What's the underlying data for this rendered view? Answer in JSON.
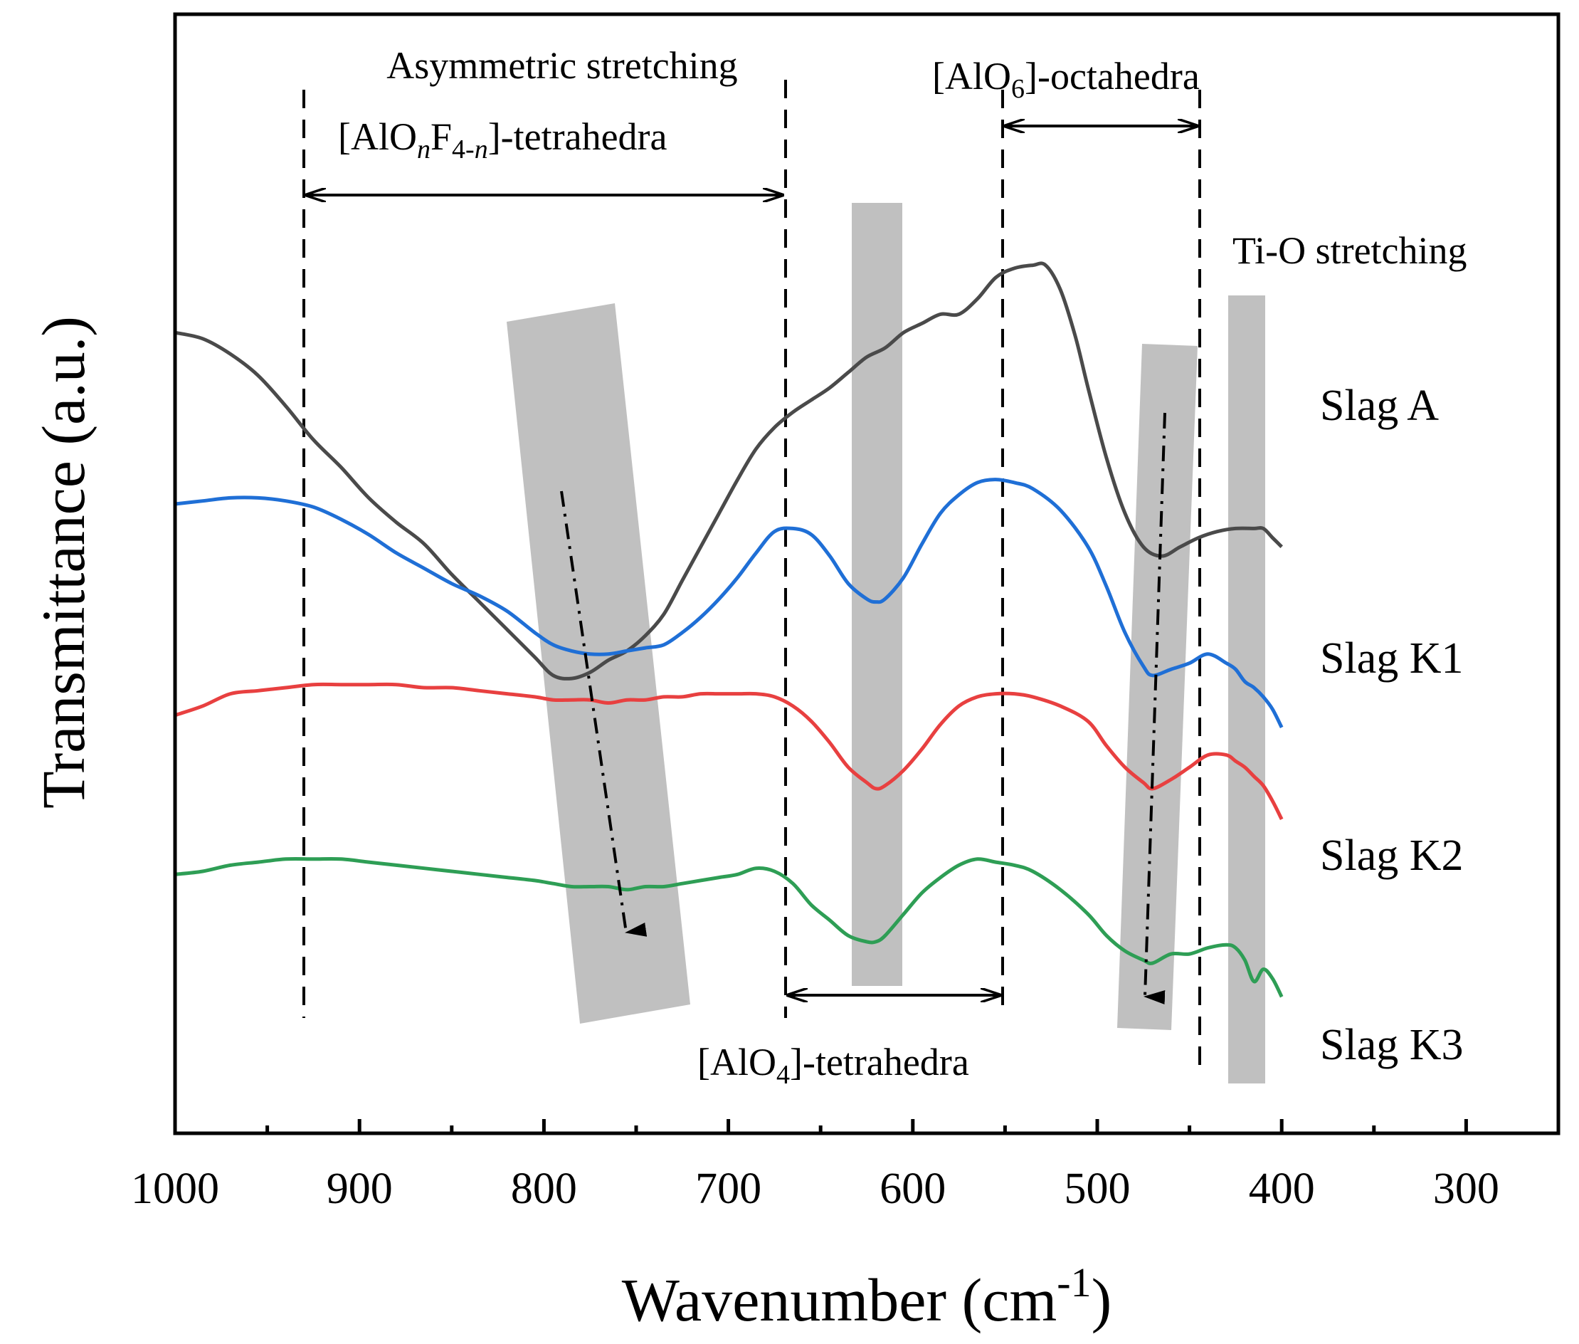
{
  "chart_data": {
    "type": "line",
    "title": "",
    "xlabel": "Wavenumber (cm",
    "xlabel_sup": "-1",
    "xlabel_close": ")",
    "ylabel": "Transmittance (a.u.)",
    "xlim": [
      1000,
      250
    ],
    "x_reversed": true,
    "y_ticks": "none",
    "xticks": [
      1000,
      900,
      800,
      700,
      600,
      500,
      400,
      300
    ],
    "xtick_labels": [
      "1000",
      "900",
      "800",
      "700",
      "600",
      "500",
      "400",
      "300"
    ],
    "minor_xticks": [
      950,
      850,
      750,
      650,
      550,
      450,
      350
    ],
    "series": [
      {
        "name": "Slag A",
        "color": "#4a4a4a",
        "x": [
          1000,
          985,
          970,
          955,
          940,
          925,
          910,
          895,
          880,
          865,
          850,
          835,
          820,
          805,
          795,
          785,
          775,
          765,
          755,
          745,
          735,
          725,
          715,
          705,
          695,
          685,
          675,
          665,
          655,
          645,
          635,
          625,
          615,
          605,
          595,
          585,
          575,
          565,
          555,
          545,
          535,
          528,
          520,
          512,
          505,
          495,
          485,
          475,
          465,
          455,
          445,
          435,
          425,
          415,
          410,
          405,
          400
        ],
        "y": [
          0.44,
          0.46,
          0.51,
          0.58,
          0.68,
          0.79,
          0.88,
          0.98,
          1.06,
          1.13,
          1.23,
          1.32,
          1.41,
          1.5,
          1.56,
          1.57,
          1.55,
          1.51,
          1.48,
          1.43,
          1.36,
          1.25,
          1.14,
          1.03,
          0.92,
          0.82,
          0.75,
          0.7,
          0.66,
          0.62,
          0.57,
          0.52,
          0.49,
          0.44,
          0.41,
          0.38,
          0.38,
          0.33,
          0.26,
          0.23,
          0.22,
          0.22,
          0.3,
          0.45,
          0.62,
          0.85,
          1.03,
          1.14,
          1.17,
          1.14,
          1.11,
          1.09,
          1.08,
          1.08,
          1.08,
          1.11,
          1.14
        ]
      },
      {
        "name": "Slag K1",
        "color": "#1f6fd6",
        "x": [
          1000,
          985,
          970,
          955,
          940,
          925,
          910,
          895,
          880,
          865,
          850,
          835,
          820,
          805,
          795,
          785,
          775,
          765,
          755,
          745,
          735,
          725,
          715,
          705,
          695,
          685,
          675,
          665,
          655,
          645,
          635,
          625,
          620,
          615,
          605,
          595,
          585,
          575,
          565,
          555,
          545,
          535,
          520,
          505,
          495,
          485,
          475,
          470,
          460,
          450,
          440,
          430,
          425,
          420,
          415,
          410,
          405,
          400
        ],
        "y": [
          1.0,
          0.99,
          0.98,
          0.98,
          0.99,
          1.01,
          1.05,
          1.1,
          1.16,
          1.21,
          1.26,
          1.3,
          1.35,
          1.42,
          1.46,
          1.48,
          1.49,
          1.49,
          1.48,
          1.47,
          1.46,
          1.42,
          1.37,
          1.31,
          1.24,
          1.16,
          1.09,
          1.08,
          1.1,
          1.17,
          1.26,
          1.31,
          1.32,
          1.31,
          1.24,
          1.13,
          1.03,
          0.97,
          0.93,
          0.92,
          0.93,
          0.95,
          1.02,
          1.14,
          1.27,
          1.42,
          1.53,
          1.56,
          1.54,
          1.52,
          1.49,
          1.52,
          1.54,
          1.58,
          1.6,
          1.63,
          1.67,
          1.73
        ]
      },
      {
        "name": "Slag K2",
        "color": "#e84040",
        "x": [
          1000,
          985,
          970,
          955,
          940,
          925,
          910,
          895,
          880,
          865,
          850,
          835,
          820,
          805,
          795,
          785,
          775,
          765,
          755,
          745,
          735,
          725,
          715,
          705,
          695,
          685,
          675,
          665,
          655,
          645,
          635,
          625,
          620,
          615,
          605,
          595,
          585,
          575,
          565,
          555,
          545,
          535,
          520,
          505,
          495,
          485,
          475,
          470,
          460,
          450,
          440,
          430,
          425,
          420,
          415,
          410,
          405,
          400
        ],
        "y": [
          1.69,
          1.66,
          1.62,
          1.61,
          1.6,
          1.59,
          1.59,
          1.59,
          1.59,
          1.6,
          1.6,
          1.61,
          1.62,
          1.63,
          1.64,
          1.64,
          1.64,
          1.65,
          1.64,
          1.64,
          1.63,
          1.63,
          1.62,
          1.62,
          1.62,
          1.62,
          1.63,
          1.66,
          1.71,
          1.78,
          1.86,
          1.91,
          1.93,
          1.92,
          1.87,
          1.8,
          1.72,
          1.66,
          1.63,
          1.62,
          1.62,
          1.63,
          1.66,
          1.71,
          1.79,
          1.86,
          1.91,
          1.93,
          1.9,
          1.86,
          1.82,
          1.82,
          1.84,
          1.86,
          1.89,
          1.92,
          1.97,
          2.03
        ]
      },
      {
        "name": "Slag K3",
        "color": "#2e9e55",
        "x": [
          1000,
          985,
          970,
          955,
          940,
          925,
          910,
          895,
          880,
          865,
          850,
          835,
          820,
          805,
          795,
          785,
          775,
          765,
          755,
          745,
          735,
          725,
          715,
          705,
          695,
          685,
          675,
          665,
          655,
          645,
          635,
          625,
          620,
          615,
          605,
          595,
          585,
          575,
          565,
          555,
          545,
          535,
          520,
          505,
          495,
          485,
          475,
          470,
          460,
          450,
          440,
          430,
          425,
          420,
          415,
          410,
          405,
          400
        ],
        "y": [
          2.21,
          2.2,
          2.18,
          2.17,
          2.16,
          2.16,
          2.16,
          2.17,
          2.18,
          2.19,
          2.2,
          2.21,
          2.22,
          2.23,
          2.24,
          2.25,
          2.25,
          2.25,
          2.26,
          2.25,
          2.25,
          2.24,
          2.23,
          2.22,
          2.21,
          2.19,
          2.2,
          2.24,
          2.31,
          2.36,
          2.41,
          2.43,
          2.43,
          2.41,
          2.34,
          2.27,
          2.22,
          2.18,
          2.16,
          2.17,
          2.18,
          2.2,
          2.26,
          2.34,
          2.41,
          2.46,
          2.49,
          2.5,
          2.47,
          2.47,
          2.45,
          2.44,
          2.45,
          2.49,
          2.56,
          2.52,
          2.55,
          2.61
        ]
      }
    ],
    "series_labels": [
      "Slag A",
      "Slag K1",
      "Slag K2",
      "Slag K3"
    ],
    "annotations": {
      "asym_line1": "Asymmetric stretching",
      "asym_line2_a": "[AlO",
      "asym_line2_n1": "n",
      "asym_line2_b": "F",
      "asym_line2_sub_a": "4-",
      "asym_line2_n2": "n",
      "asym_line2_c": "]-tetrahedra",
      "octa_a": "[AlO",
      "octa_sub": "6",
      "octa_b": "]-octahedra",
      "tio": "Ti-O stretching",
      "tetra_a": "[AlO",
      "tetra_sub": "4",
      "tetra_b": "]-tetrahedra"
    },
    "reference_lines_x": [
      930,
      668,
      550,
      443
    ],
    "range_arrows": [
      {
        "label": "[AlOnF4-n]-tetrahedra",
        "from": 930,
        "to": 668
      },
      {
        "label": "[AlO6]-octahedra",
        "from": 550,
        "to": 443
      },
      {
        "label": "[AlO4]-tetrahedra",
        "from": 668,
        "to": 550
      }
    ],
    "shaded_bands_center_x": [
      760,
      615,
      466,
      416
    ],
    "shift_arrows": [
      {
        "from_x": 786,
        "to_x": 753
      },
      {
        "from_x": 462,
        "to_x": 475
      }
    ]
  }
}
